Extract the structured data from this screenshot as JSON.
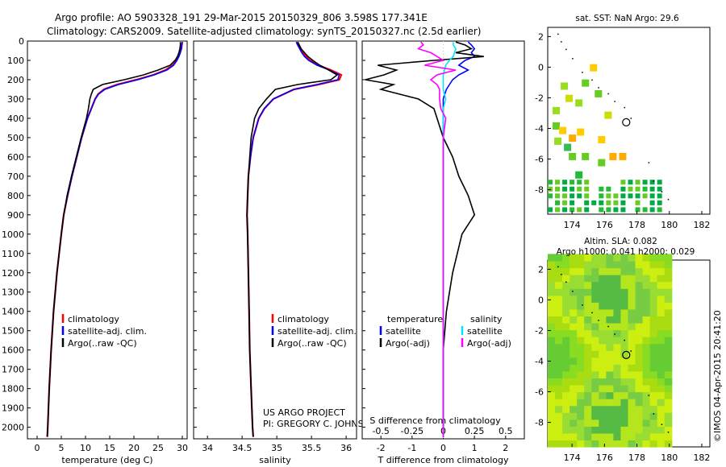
{
  "header": {
    "line1": "Argo profile: AO 5903328_191 29-Mar-2015 20150329_806 3.598S 177.341E",
    "line2": "Climatology: CARS2009. Satellite-adjusted climatology: synTS_20150327.nc (2.5d earlier)"
  },
  "colors": {
    "climatology": "#ff0000",
    "satellite": "#0000ff",
    "argo": "#000000",
    "sat_salinity": "#00e5ff",
    "argo_salinity_diff": "#ff00ff"
  },
  "depth_ticks": [
    0,
    100,
    200,
    300,
    400,
    500,
    600,
    700,
    800,
    900,
    1000,
    1100,
    1200,
    1300,
    1400,
    1500,
    1600,
    1700,
    1800,
    1900,
    2000
  ],
  "chart_data": [
    {
      "type": "line",
      "xlabel": "temperature (deg C)",
      "ylabel": "",
      "xlim": [
        -2,
        31
      ],
      "ylim": [
        2060,
        0
      ],
      "xticks": [
        "0",
        "5",
        "10",
        "15",
        "20",
        "25",
        "30"
      ],
      "xtick_values": [
        0,
        5,
        10,
        15,
        20,
        25,
        30
      ],
      "legend": [
        "climatology",
        "satellite-adj. clim.",
        "Argo(..raw -QC)"
      ],
      "legend_position": "lower-center",
      "depth": [
        5,
        20,
        40,
        60,
        80,
        100,
        125,
        150,
        175,
        200,
        225,
        250,
        275,
        300,
        350,
        400,
        500,
        600,
        700,
        800,
        900,
        1000,
        1200,
        1400,
        1600,
        1800,
        2000,
        2050
      ],
      "series": [
        {
          "name": "climatology",
          "values": [
            30.0,
            29.9,
            29.8,
            29.5,
            29.2,
            28.8,
            28.0,
            26.5,
            24.0,
            20.5,
            16.5,
            13.8,
            12.6,
            12.0,
            11.2,
            10.4,
            9.2,
            8.2,
            7.2,
            6.3,
            5.5,
            5.0,
            4.1,
            3.4,
            2.9,
            2.5,
            2.2,
            2.1
          ]
        },
        {
          "name": "satellite-adj. clim.",
          "values": [
            30.0,
            29.9,
            29.8,
            29.6,
            29.3,
            28.9,
            28.2,
            26.8,
            24.2,
            20.8,
            16.8,
            14.0,
            12.7,
            12.0,
            11.2,
            10.4,
            9.2,
            8.2,
            7.2,
            6.3,
            5.5,
            5.0,
            4.1,
            3.4,
            2.9,
            2.5,
            2.2,
            2.1
          ]
        },
        {
          "name": "Argo(..raw -QC)",
          "values": [
            29.6,
            29.6,
            29.5,
            29.3,
            29.0,
            28.5,
            27.5,
            25.0,
            22.0,
            18.0,
            13.5,
            11.6,
            11.2,
            10.9,
            10.6,
            10.2,
            9.1,
            8.1,
            7.1,
            6.2,
            5.5,
            5.0,
            4.1,
            3.4,
            2.9,
            2.5,
            2.2,
            2.1
          ]
        }
      ]
    },
    {
      "type": "line",
      "xlabel": "salinity",
      "ylabel": "",
      "xlim": [
        33.8,
        36.15
      ],
      "ylim": [
        2060,
        0
      ],
      "xticks": [
        "34",
        "34.5",
        "35",
        "35.5",
        "36"
      ],
      "xtick_values": [
        34,
        34.5,
        35,
        35.5,
        36
      ],
      "legend": [
        "climatology",
        "satellite-adj. clim.",
        "Argo(..raw -QC)"
      ],
      "legend_position": "lower-right",
      "annotation": [
        "US ARGO PROJECT",
        "PI: GREGORY C. JOHNSON"
      ],
      "depth": [
        5,
        20,
        40,
        60,
        80,
        100,
        125,
        150,
        175,
        200,
        225,
        250,
        300,
        350,
        400,
        500,
        600,
        700,
        800,
        900,
        1000,
        1200,
        1400,
        1600,
        1800,
        2000,
        2050
      ],
      "series": [
        {
          "name": "climatology",
          "values": [
            35.3,
            35.32,
            35.35,
            35.38,
            35.42,
            35.48,
            35.6,
            35.78,
            35.93,
            35.9,
            35.6,
            35.25,
            34.95,
            34.82,
            34.74,
            34.66,
            34.62,
            34.59,
            34.58,
            34.57,
            34.58,
            34.59,
            34.6,
            34.61,
            34.63,
            34.65,
            34.66
          ]
        },
        {
          "name": "satellite-adj. clim.",
          "values": [
            35.28,
            35.3,
            35.33,
            35.36,
            35.4,
            35.46,
            35.58,
            35.76,
            35.9,
            35.88,
            35.58,
            35.24,
            34.95,
            34.82,
            34.74,
            34.66,
            34.62,
            34.59,
            34.58,
            34.57,
            34.58,
            34.59,
            34.6,
            34.61,
            34.63,
            34.65,
            34.66
          ]
        },
        {
          "name": "Argo(..raw -QC)",
          "values": [
            35.3,
            35.32,
            35.35,
            35.4,
            35.45,
            35.52,
            35.62,
            35.75,
            35.87,
            35.78,
            35.3,
            34.98,
            34.85,
            34.74,
            34.68,
            34.63,
            34.61,
            34.59,
            34.58,
            34.57,
            34.58,
            34.59,
            34.6,
            34.61,
            34.63,
            34.65,
            34.66
          ]
        }
      ]
    },
    {
      "type": "line",
      "xlabel": "T difference from climatology",
      "xlabel_secondary": "S difference from climatology",
      "ylabel": "",
      "xlim": [
        -2.6,
        2.6
      ],
      "ylim": [
        2060,
        0
      ],
      "xticks": [
        "-2",
        "-1",
        "0",
        "1",
        "2"
      ],
      "xtick_values": [
        -2,
        -1,
        0,
        1,
        2
      ],
      "xticks_secondary": [
        "-0.5",
        "-0.25",
        "0",
        "0.25",
        "0.5"
      ],
      "legend_groups": [
        {
          "title": "temperature",
          "entries": [
            "satellite",
            "Argo(-adj)"
          ]
        },
        {
          "title": "salinity",
          "entries": [
            "satellite",
            "Argo(-adj)"
          ]
        }
      ],
      "depth": [
        5,
        20,
        40,
        60,
        80,
        100,
        125,
        150,
        175,
        200,
        225,
        250,
        300,
        350,
        400,
        500,
        600,
        700,
        800,
        900,
        1000,
        1200,
        1400,
        1600,
        1800,
        2000,
        2050
      ],
      "series": [
        {
          "name": "temperature satellite",
          "values": [
            0.8,
            0.9,
            1.0,
            0.9,
            1.0,
            0.7,
            0.5,
            0.8,
            0.5,
            0.3,
            0.2,
            0.1,
            0.0,
            0.0,
            0.0,
            0.0,
            0.0,
            0.0,
            0.0,
            0.0,
            0.0,
            0.0,
            0.0,
            0.0,
            0.0,
            0.0,
            0.0
          ]
        },
        {
          "name": "temperature Argo(-adj)",
          "values": [
            0.4,
            0.7,
            0.9,
            0.4,
            1.3,
            -0.3,
            -2.1,
            -1.5,
            -1.9,
            -2.5,
            -1.6,
            -2.0,
            -0.8,
            -0.3,
            -0.2,
            0.0,
            0.3,
            0.5,
            0.8,
            1.0,
            0.6,
            0.3,
            0.1,
            0.0,
            0.0,
            0.0,
            0.0
          ]
        },
        {
          "name": "salinity satellite",
          "values": [
            0.08,
            0.08,
            0.1,
            0.09,
            0.08,
            0.05,
            0.02,
            0.01,
            0.0,
            0.0,
            0.0,
            0.0,
            0.02,
            0.0,
            0.0,
            0.0,
            0.0,
            0.0,
            0.0,
            0.0,
            0.0,
            0.0,
            0.0,
            0.0,
            0.0,
            0.0,
            0.0
          ]
        },
        {
          "name": "salinity Argo(-adj)",
          "values": [
            -0.18,
            -0.16,
            -0.2,
            -0.1,
            -0.05,
            0.0,
            -0.15,
            0.1,
            -0.05,
            -0.1,
            -0.05,
            -0.03,
            -0.03,
            -0.02,
            0.02,
            0.0,
            0.0,
            0.0,
            0.0,
            0.0,
            0.0,
            0.0,
            0.0,
            0.0,
            0.0,
            0.0,
            0.0
          ]
        }
      ]
    },
    {
      "type": "heatmap",
      "title": "sat. SST: NaN Argo: 29.6",
      "xlim": [
        172.5,
        182.5
      ],
      "ylim": [
        -9.6,
        2.6
      ],
      "xticks": [
        "174",
        "176",
        "178",
        "180",
        "182"
      ],
      "xtick_values": [
        174,
        176,
        178,
        180,
        182
      ],
      "yticks": [
        "2",
        "0",
        "-2",
        "-4",
        "-6",
        "-8"
      ],
      "ytick_values": [
        2,
        0,
        -2,
        -4,
        -6,
        -8
      ],
      "argo_marker": {
        "lon": 177.341,
        "lat": -3.598
      }
    },
    {
      "type": "heatmap",
      "title": "Altim. SLA: 0.082",
      "subtitle": "Argo h1000: 0.041 h2000: 0.029",
      "xlim": [
        172.5,
        182.5
      ],
      "ylim": [
        -9.6,
        2.6
      ],
      "xticks": [
        "174",
        "176",
        "178",
        "180",
        "182"
      ],
      "xtick_values": [
        174,
        176,
        178,
        180,
        182
      ],
      "yticks": [
        "2",
        "0",
        "-2",
        "-4",
        "-6",
        "-8"
      ],
      "ytick_values": [
        2,
        0,
        -2,
        -4,
        -6,
        -8
      ],
      "argo_marker": {
        "lon": 177.341,
        "lat": -3.598
      }
    }
  ],
  "footer_stamp": "©IMOS 04-Apr-2015 20:41:20"
}
